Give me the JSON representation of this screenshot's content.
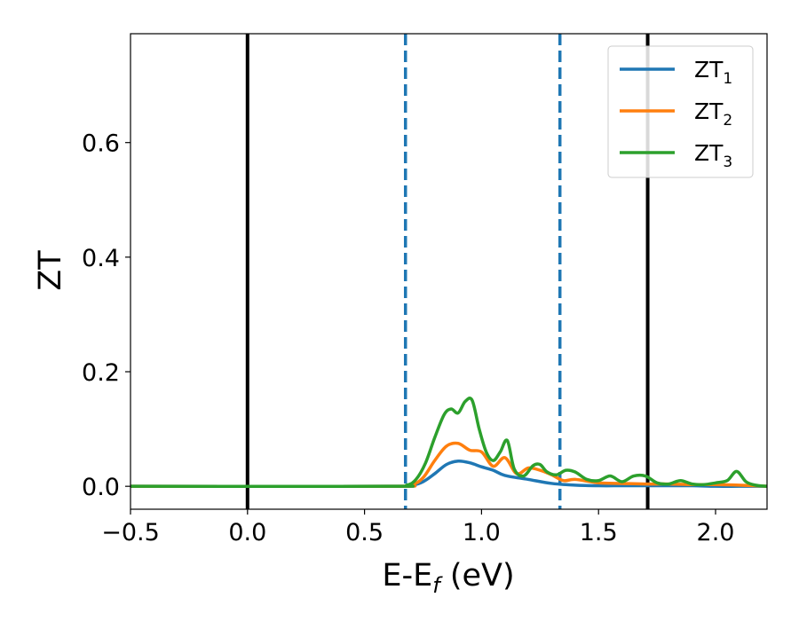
{
  "chart_data": {
    "type": "line",
    "xlabel": "E-E",
    "xlabel_sub": "f",
    "xlabel_unit": " (eV)",
    "ylabel": "ZT",
    "xlim": [
      -0.5,
      2.22
    ],
    "ylim": [
      -0.04,
      0.79
    ],
    "xticks": [
      -0.5,
      0.0,
      0.5,
      1.0,
      1.5,
      2.0
    ],
    "xtick_labels": [
      "−0.5",
      "0.0",
      "0.5",
      "1.0",
      "1.5",
      "2.0"
    ],
    "yticks": [
      0.0,
      0.2,
      0.4,
      0.6
    ],
    "ytick_labels": [
      "0.0",
      "0.2",
      "0.4",
      "0.6"
    ],
    "grid": false,
    "legend_position": "top-right",
    "vlines": [
      {
        "x": 0.0,
        "style": "solid",
        "color": "#000000"
      },
      {
        "x": 1.71,
        "style": "solid",
        "color": "#000000"
      },
      {
        "x": 0.675,
        "style": "dashed",
        "color": "#1f77b4"
      },
      {
        "x": 1.335,
        "style": "dashed",
        "color": "#1f77b4"
      }
    ],
    "series": [
      {
        "name": "ZT",
        "name_sub": "1",
        "color": "#1f77b4",
        "x": [
          -0.5,
          0.6,
          0.7,
          0.75,
          0.8,
          0.85,
          0.9,
          0.95,
          1.0,
          1.05,
          1.1,
          1.2,
          1.3,
          1.4,
          1.5,
          1.6,
          1.7,
          1.8,
          1.9,
          2.0,
          2.1,
          2.22
        ],
        "y": [
          0.0,
          0.0,
          0.002,
          0.008,
          0.022,
          0.038,
          0.044,
          0.041,
          0.034,
          0.028,
          0.019,
          0.012,
          0.005,
          0.002,
          0.001,
          0.001,
          0.001,
          0.001,
          0.001,
          0.0,
          0.0,
          0.0
        ]
      },
      {
        "name": "ZT",
        "name_sub": "2",
        "color": "#ff7f0e",
        "x": [
          -0.5,
          0.6,
          0.7,
          0.75,
          0.8,
          0.85,
          0.9,
          0.95,
          1.0,
          1.05,
          1.1,
          1.15,
          1.2,
          1.25,
          1.3,
          1.35,
          1.4,
          1.5,
          1.6,
          1.7,
          1.8,
          1.9,
          2.0,
          2.1,
          2.22
        ],
        "y": [
          0.0,
          0.0,
          0.003,
          0.015,
          0.045,
          0.07,
          0.075,
          0.063,
          0.06,
          0.035,
          0.05,
          0.022,
          0.032,
          0.028,
          0.02,
          0.01,
          0.012,
          0.006,
          0.005,
          0.004,
          0.004,
          0.003,
          0.003,
          0.002,
          0.0
        ]
      },
      {
        "name": "ZT",
        "name_sub": "3",
        "color": "#2ca02c",
        "x": [
          -0.5,
          0.6,
          0.68,
          0.72,
          0.76,
          0.8,
          0.84,
          0.87,
          0.9,
          0.93,
          0.96,
          0.99,
          1.02,
          1.05,
          1.08,
          1.11,
          1.14,
          1.18,
          1.22,
          1.25,
          1.28,
          1.32,
          1.36,
          1.4,
          1.45,
          1.5,
          1.55,
          1.6,
          1.65,
          1.7,
          1.75,
          1.8,
          1.85,
          1.9,
          1.95,
          2.0,
          2.05,
          2.09,
          2.13,
          2.17,
          2.22
        ],
        "y": [
          0.0,
          0.0,
          0.002,
          0.012,
          0.04,
          0.085,
          0.125,
          0.135,
          0.128,
          0.148,
          0.15,
          0.1,
          0.06,
          0.045,
          0.06,
          0.08,
          0.03,
          0.018,
          0.036,
          0.038,
          0.025,
          0.02,
          0.028,
          0.025,
          0.012,
          0.01,
          0.018,
          0.008,
          0.018,
          0.018,
          0.006,
          0.004,
          0.01,
          0.004,
          0.003,
          0.006,
          0.01,
          0.026,
          0.008,
          0.002,
          0.0
        ]
      }
    ]
  }
}
